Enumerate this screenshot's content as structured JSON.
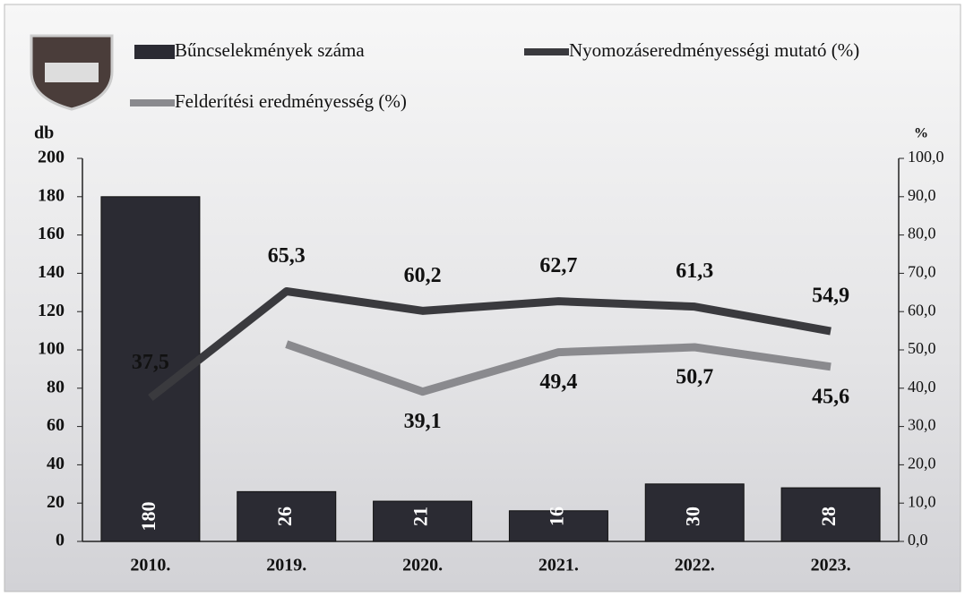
{
  "chart_data": {
    "type": "bar-line",
    "categories": [
      "2010.",
      "2019.",
      "2020.",
      "2021.",
      "2022.",
      "2023."
    ],
    "ylabel": "db",
    "y2label": "%",
    "ylim": [
      0,
      200
    ],
    "yticks": [
      0,
      20,
      40,
      60,
      80,
      100,
      120,
      140,
      160,
      180,
      200
    ],
    "y2lim": [
      0,
      100
    ],
    "y2ticks": [
      {
        "value": 0,
        "label": "0,0"
      },
      {
        "value": 10,
        "label": "10,0"
      },
      {
        "value": 20,
        "label": "20,0"
      },
      {
        "value": 30,
        "label": "30,0"
      },
      {
        "value": 40,
        "label": "40,0"
      },
      {
        "value": 50,
        "label": "50,0"
      },
      {
        "value": 60,
        "label": "60,0"
      },
      {
        "value": 70,
        "label": "70,0"
      },
      {
        "value": 80,
        "label": "80,0"
      },
      {
        "value": 90,
        "label": "90,0"
      },
      {
        "value": 100,
        "label": "100,0"
      }
    ],
    "series": [
      {
        "name": "Bűncselekmények száma",
        "type": "bar",
        "axis": "y",
        "color": "#2b2b33",
        "values": [
          180,
          26,
          21,
          16,
          30,
          28
        ]
      },
      {
        "name": "Nyomozáseredményességi mutató (%)",
        "type": "line",
        "axis": "y2",
        "color": "#3a3a3e",
        "values": [
          37.5,
          65.3,
          60.2,
          62.7,
          61.3,
          54.9
        ],
        "value_labels": [
          "37,5",
          "65,3",
          "60,2",
          "62,7",
          "61,3",
          "54,9"
        ]
      },
      {
        "name": "Felderítési eredményesség (%)",
        "type": "line",
        "axis": "y2",
        "color": "#8a8a8e",
        "values": [
          null,
          51.5,
          39.1,
          49.4,
          50.7,
          45.6
        ],
        "value_labels": [
          null,
          null,
          "39,1",
          "49,4",
          "50,7",
          "45,6"
        ]
      }
    ]
  }
}
